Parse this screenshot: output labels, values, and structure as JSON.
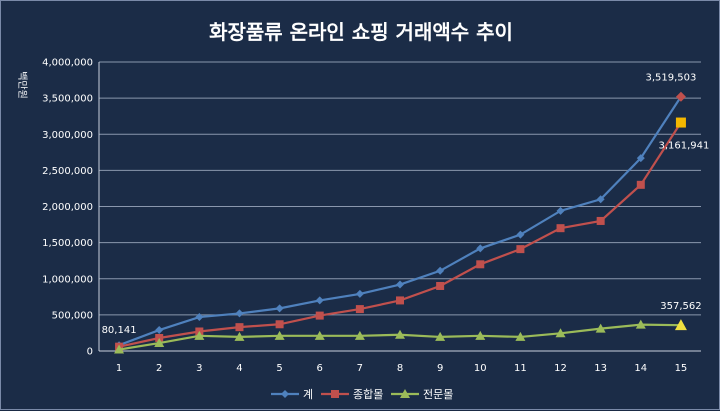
{
  "chart_data": {
    "type": "line",
    "title": "화장품류 온라인 쇼핑 거래액수 추이",
    "ylabel": "백만원",
    "xlabel": "",
    "categories": [
      1,
      2,
      3,
      4,
      5,
      6,
      7,
      8,
      9,
      10,
      11,
      12,
      13,
      14,
      15
    ],
    "ylim": [
      0,
      4000000
    ],
    "yticks": [
      0,
      500000,
      1000000,
      1500000,
      2000000,
      2500000,
      3000000,
      3500000,
      4000000
    ],
    "ytick_labels": [
      "0",
      "500,000",
      "1,000,000",
      "1,500,000",
      "2,000,000",
      "2,500,000",
      "3,000,000",
      "3,500,000",
      "4,000,000"
    ],
    "grid": true,
    "legend": "bottom",
    "series": [
      {
        "name": "계",
        "color": "#4f81bd",
        "marker": "diamond",
        "values": [
          80141,
          290000,
          470000,
          520000,
          590000,
          700000,
          790000,
          920000,
          1110000,
          1420000,
          1610000,
          1940000,
          2100000,
          2670000,
          3519503
        ]
      },
      {
        "name": "종합몰",
        "color": "#c0504d",
        "marker": "square",
        "values": [
          60000,
          180000,
          270000,
          330000,
          370000,
          490000,
          580000,
          700000,
          900000,
          1200000,
          1410000,
          1700000,
          1800000,
          2300000,
          3161941
        ]
      },
      {
        "name": "전문몰",
        "color": "#9bbb59",
        "marker": "triangle",
        "values": [
          20000,
          110000,
          210000,
          195000,
          210000,
          210000,
          210000,
          225000,
          195000,
          210000,
          195000,
          245000,
          310000,
          365000,
          357562
        ]
      }
    ],
    "annotations": [
      {
        "text": "80,141",
        "series": 0,
        "index": 0
      },
      {
        "text": "3,519,503",
        "series": 0,
        "index": 14
      },
      {
        "text": "3,161,941",
        "series": 1,
        "index": 14
      },
      {
        "text": "357,562",
        "series": 2,
        "index": 14
      }
    ]
  }
}
